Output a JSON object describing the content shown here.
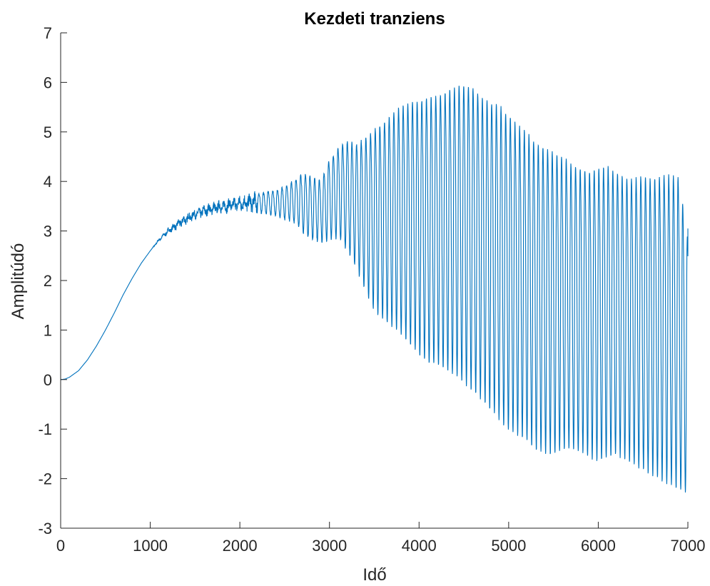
{
  "chart_data": {
    "type": "line",
    "title": "Kezdeti tranziens",
    "xlabel": "Idő",
    "ylabel": "Amplitúdó",
    "xlim": [
      0,
      7000
    ],
    "ylim": [
      -3,
      7
    ],
    "xticks": [
      0,
      1000,
      2000,
      3000,
      4000,
      5000,
      6000,
      7000
    ],
    "xtick_labels": [
      "0",
      "1000",
      "2000",
      "3000",
      "4000",
      "5000",
      "6000",
      "7000"
    ],
    "yticks": [
      -3,
      -2,
      -1,
      0,
      1,
      2,
      3,
      4,
      5,
      6,
      7
    ],
    "ytick_labels": [
      "-3",
      "-2",
      "-1",
      "0",
      "1",
      "2",
      "3",
      "4",
      "5",
      "6",
      "7"
    ],
    "grid": false,
    "line_color": "#0072BD",
    "series": [
      {
        "x": [
          0,
          50,
          100,
          200,
          300,
          400,
          500,
          600,
          700,
          800,
          900,
          1000,
          1100,
          1200,
          1300,
          1400,
          1500,
          1600,
          1700,
          1800,
          1900,
          2000,
          2100,
          2200,
          2300,
          2400,
          2500,
          2600,
          2700,
          2800,
          2900,
          3000,
          3100,
          3200,
          3300,
          3400,
          3500,
          3600,
          3700,
          3800,
          3900,
          4000,
          4100,
          4200,
          4300,
          4400,
          4500,
          4600,
          4700,
          4800,
          4900,
          5000,
          5100,
          5200,
          5300,
          5400,
          5500,
          5600,
          5700,
          5800,
          5900,
          6000,
          6100,
          6200,
          6300,
          6400,
          6500,
          6600,
          6700,
          6800,
          6900,
          7000
        ],
        "upper": [
          0.0,
          0.01,
          0.05,
          0.18,
          0.4,
          0.68,
          1.0,
          1.35,
          1.72,
          2.05,
          2.35,
          2.6,
          2.85,
          3.05,
          3.2,
          3.33,
          3.42,
          3.5,
          3.56,
          3.6,
          3.64,
          3.68,
          3.72,
          3.76,
          3.8,
          3.85,
          3.9,
          4.05,
          4.2,
          4.15,
          4.05,
          4.5,
          4.75,
          4.9,
          4.85,
          5.0,
          5.2,
          5.35,
          5.55,
          5.7,
          5.8,
          5.85,
          5.9,
          5.95,
          6.05,
          6.15,
          6.2,
          6.15,
          5.95,
          5.85,
          5.8,
          5.6,
          5.4,
          5.25,
          5.05,
          4.95,
          4.85,
          4.75,
          4.6,
          4.5,
          4.45,
          4.5,
          4.55,
          4.4,
          4.3,
          4.3,
          4.35,
          4.3,
          4.35,
          4.4,
          4.35,
          3.05
        ],
        "lower": [
          0.0,
          0.01,
          0.05,
          0.18,
          0.4,
          0.68,
          1.0,
          1.35,
          1.72,
          2.05,
          2.35,
          2.6,
          2.8,
          2.95,
          3.05,
          3.15,
          3.25,
          3.3,
          3.35,
          3.38,
          3.4,
          3.42,
          3.42,
          3.4,
          3.35,
          3.3,
          3.25,
          3.2,
          3.0,
          2.85,
          2.8,
          2.85,
          2.9,
          2.65,
          2.3,
          1.85,
          1.45,
          1.3,
          1.15,
          1.0,
          0.8,
          0.6,
          0.45,
          0.4,
          0.3,
          0.2,
          0.05,
          -0.1,
          -0.3,
          -0.5,
          -0.7,
          -0.9,
          -1.0,
          -1.1,
          -1.3,
          -1.35,
          -1.4,
          -1.3,
          -1.3,
          -1.35,
          -1.45,
          -1.55,
          -1.45,
          -1.4,
          -1.5,
          -1.6,
          -1.7,
          -1.8,
          -1.9,
          -2.0,
          -2.1,
          -2.2
        ],
        "oscillation_start": 2200,
        "oscillation_period": 52
      }
    ]
  }
}
